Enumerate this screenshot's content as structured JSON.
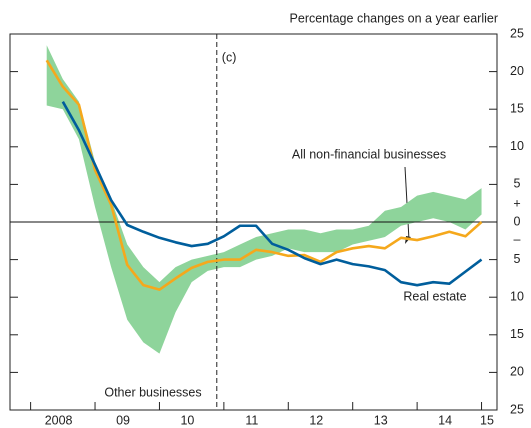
{
  "chart_data": {
    "type": "line",
    "subtitle": "Percentage changes on a year earlier",
    "x": [
      2008.25,
      2008.5,
      2008.75,
      2009.0,
      2009.25,
      2009.5,
      2009.75,
      2010.0,
      2010.25,
      2010.5,
      2010.75,
      2011.0,
      2011.25,
      2011.5,
      2011.75,
      2012.0,
      2012.25,
      2012.5,
      2012.75,
      2013.0,
      2013.25,
      2013.5,
      2013.75,
      2014.0,
      2014.25,
      2014.5,
      2014.75,
      2015.0
    ],
    "series": [
      {
        "name": "Other businesses",
        "type": "band",
        "color": "#8ed49b",
        "upper": [
          23.5,
          19,
          16,
          8,
          3,
          -3,
          -6,
          -8,
          -6,
          -5,
          -4.5,
          -4,
          -3,
          -2,
          -1.5,
          -1,
          -1,
          -1.5,
          -1,
          -1,
          -0.5,
          1.5,
          2,
          3.5,
          4,
          3.5,
          3,
          4.5
        ],
        "lower": [
          15.5,
          15,
          11,
          2,
          -6,
          -13,
          -16,
          -17.5,
          -12,
          -8,
          -6.5,
          -6,
          -6,
          -5,
          -4.5,
          -3.5,
          -4,
          -4,
          -4,
          -3,
          -2.5,
          -2,
          -0.5,
          0,
          0.5,
          0,
          -1,
          1
        ]
      },
      {
        "name": "All non-financial businesses",
        "type": "line",
        "color": "#f5a81c",
        "values": [
          21.5,
          18,
          15.6,
          6.9,
          2.3,
          -5.7,
          -8.4,
          -9.0,
          -7.5,
          -6.1,
          -5.3,
          -5.0,
          -5.0,
          -3.7,
          -4,
          -4.5,
          -4.4,
          -5.3,
          -4,
          -3.5,
          -3.2,
          -3.5,
          -2.1,
          -2.4,
          -1.9,
          -1.3,
          -1.9,
          0
        ]
      },
      {
        "name": "Real estate",
        "type": "line",
        "color": "#005e9c",
        "values": [
          null,
          16,
          12.2,
          7.6,
          2.9,
          -0.4,
          -1.3,
          -2.1,
          -2.7,
          -3.2,
          -2.9,
          -1.9,
          -0.5,
          -0.5,
          -2.9,
          -3.7,
          -4.8,
          -5.6,
          -5,
          -5.6,
          -5.9,
          -6.4,
          -8,
          -8.4,
          -8,
          -8.2,
          -6.6,
          -5
        ]
      }
    ],
    "xlim": [
      2007.68,
      2015.24
    ],
    "xticks": [
      {
        "value": 2008,
        "label": "2008"
      },
      {
        "value": 2009,
        "label": "09"
      },
      {
        "value": 2010,
        "label": "10"
      },
      {
        "value": 2011,
        "label": "11"
      },
      {
        "value": 2012,
        "label": "12"
      },
      {
        "value": 2013,
        "label": "13"
      },
      {
        "value": 2014,
        "label": "14"
      },
      {
        "value": 2015,
        "label": "15"
      }
    ],
    "ylim": [
      -25,
      25
    ],
    "yticks": [
      25,
      20,
      15,
      10,
      5,
      0,
      {
        "value": -5,
        "label": "5"
      },
      {
        "value": -10,
        "label": "10"
      },
      {
        "value": -15,
        "label": "15"
      },
      {
        "value": -20,
        "label": "20"
      },
      {
        "value": -25,
        "label": "25"
      }
    ],
    "zero_signs": {
      "above": "+",
      "below": "–"
    },
    "vline": {
      "value": 2010.89,
      "label": "(c)"
    }
  }
}
